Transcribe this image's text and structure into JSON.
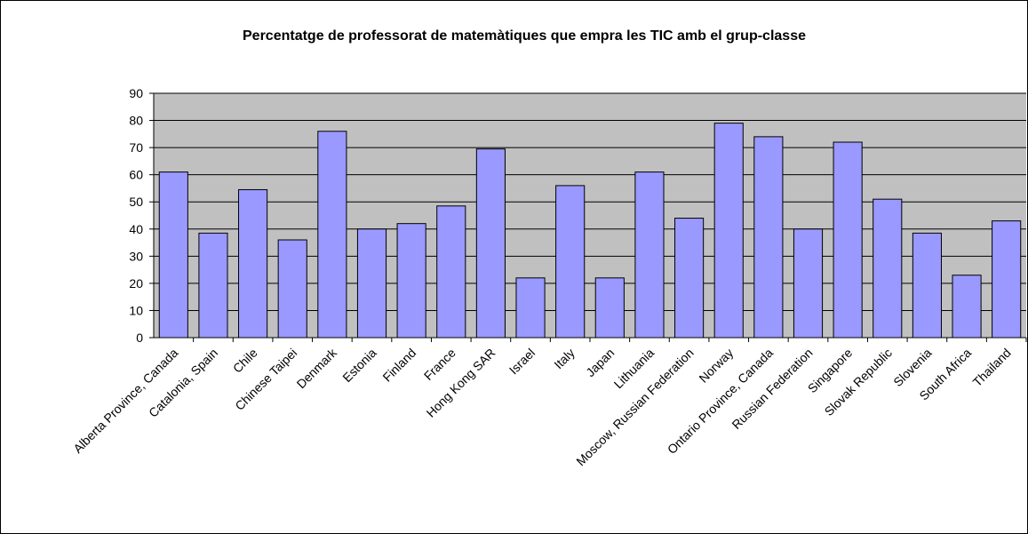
{
  "chart_data": {
    "type": "bar",
    "title": "Percentatge de professorat de matemàtiques que empra les TIC amb el grup-classe",
    "categories": [
      "Alberta Province, Canada",
      "Catalonia, Spain",
      "Chile",
      "Chinese Taipei",
      "Denmark",
      "Estonia",
      "Finland",
      "France",
      "Hong Kong SAR",
      "Israel",
      "Italy",
      "Japan",
      "Lithuania",
      "Moscow, Russian Federation",
      "Norway",
      "Ontario Province, Canada",
      "Russian Federation",
      "Singapore",
      "Slovak Republic",
      "Slovenia",
      "South Africa",
      "Thailand"
    ],
    "values": [
      61,
      38.5,
      54.5,
      36,
      76,
      40,
      42,
      48.5,
      69.5,
      22,
      56,
      22,
      61,
      44,
      79,
      74,
      40,
      72,
      51,
      38.5,
      23,
      43
    ],
    "color": "#9999ff",
    "ylim": [
      0,
      90
    ],
    "yticks": [
      0,
      10,
      20,
      30,
      40,
      50,
      60,
      70,
      80,
      90
    ],
    "grid": true
  }
}
